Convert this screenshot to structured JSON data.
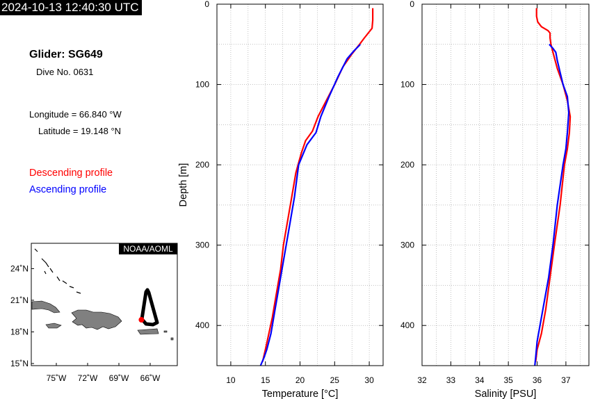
{
  "header": {
    "timestamp": "2024-10-13 12:40:30 UTC"
  },
  "info": {
    "glider": "Glider: SG649",
    "dive": "Dive No. 0631",
    "longitude": "Longitude = 66.840 °W",
    "latitude": "Latitude = 19.148 °N"
  },
  "legend": {
    "descending": "Descending profile",
    "ascending": "Ascending profile"
  },
  "map": {
    "badge": "NOAA/AOML",
    "lat_ticks": [
      "24˚N",
      "21˚N",
      "18˚N",
      "15˚N"
    ],
    "lon_ticks": [
      "75˚W",
      "72˚W",
      "69˚W",
      "66˚W"
    ],
    "lat_values": [
      24,
      21,
      18,
      15
    ],
    "lon_values": [
      -75,
      -72,
      -69,
      -66
    ],
    "position": {
      "lon": -66.84,
      "lat": 19.148
    }
  },
  "colors": {
    "descending": "#ff0000",
    "ascending": "#0000ff",
    "track": "#000000",
    "land": "#808080"
  },
  "chart_data": [
    {
      "type": "line",
      "xlabel": "Temperature [°C]",
      "ylabel": "Depth [m]",
      "xlim": [
        8,
        32
      ],
      "ylim": [
        450,
        0
      ],
      "xticks": [
        10,
        15,
        20,
        25,
        30
      ],
      "yticks": [
        0,
        100,
        200,
        300,
        400
      ],
      "grid": true,
      "series": [
        {
          "name": "Descending profile",
          "x": [
            30.5,
            30.5,
            30.4,
            29.3,
            28.6,
            27.5,
            26.2,
            25.0,
            23.8,
            22.6,
            21.8,
            20.8,
            20.2,
            19.4,
            18.8,
            18.2,
            17.6,
            17.2,
            16.6,
            16.0,
            15.5,
            15.0,
            14.6
          ],
          "y": [
            5,
            20,
            30,
            42,
            50,
            62,
            78,
            100,
            120,
            140,
            158,
            170,
            185,
            210,
            240,
            270,
            300,
            330,
            360,
            390,
            410,
            430,
            445
          ]
        },
        {
          "name": "Ascending profile",
          "x": [
            28.7,
            28.5,
            27.8,
            26.8,
            25.5,
            24.2,
            23.0,
            22.3,
            21.0,
            19.8,
            19.2,
            18.4,
            17.8,
            17.0,
            16.4,
            15.8,
            15.2,
            14.8,
            14.3
          ],
          "y": [
            50,
            52,
            58,
            68,
            90,
            115,
            140,
            160,
            175,
            200,
            240,
            280,
            310,
            350,
            380,
            410,
            430,
            440,
            450
          ]
        }
      ]
    },
    {
      "type": "line",
      "xlabel": "Salinity [PSU]",
      "ylabel": "",
      "xlim": [
        32,
        37.8
      ],
      "ylim": [
        450,
        0
      ],
      "xticks": [
        32,
        33,
        34,
        35,
        36,
        37
      ],
      "yticks": [
        0,
        100,
        200,
        300,
        400
      ],
      "grid": true,
      "series": [
        {
          "name": "Descending profile",
          "x": [
            35.98,
            35.98,
            36.02,
            36.15,
            36.38,
            36.45,
            36.45,
            36.48,
            36.55,
            36.7,
            36.9,
            37.05,
            37.15,
            37.12,
            37.05,
            36.95,
            36.8,
            36.6,
            36.45,
            36.3,
            36.15,
            36.0,
            35.95
          ],
          "y": [
            5,
            15,
            22,
            28,
            33,
            36,
            42,
            50,
            60,
            80,
            100,
            120,
            140,
            160,
            180,
            200,
            250,
            300,
            340,
            380,
            410,
            430,
            445
          ]
        },
        {
          "name": "Ascending profile",
          "x": [
            36.42,
            36.55,
            36.65,
            36.7,
            36.8,
            36.9,
            37.05,
            37.1,
            37.05,
            37.0,
            36.9,
            36.7,
            36.55,
            36.4,
            36.2,
            36.0,
            35.95,
            35.92
          ],
          "y": [
            50,
            55,
            60,
            70,
            85,
            100,
            115,
            135,
            160,
            180,
            200,
            250,
            300,
            340,
            380,
            420,
            440,
            450
          ]
        }
      ]
    }
  ]
}
